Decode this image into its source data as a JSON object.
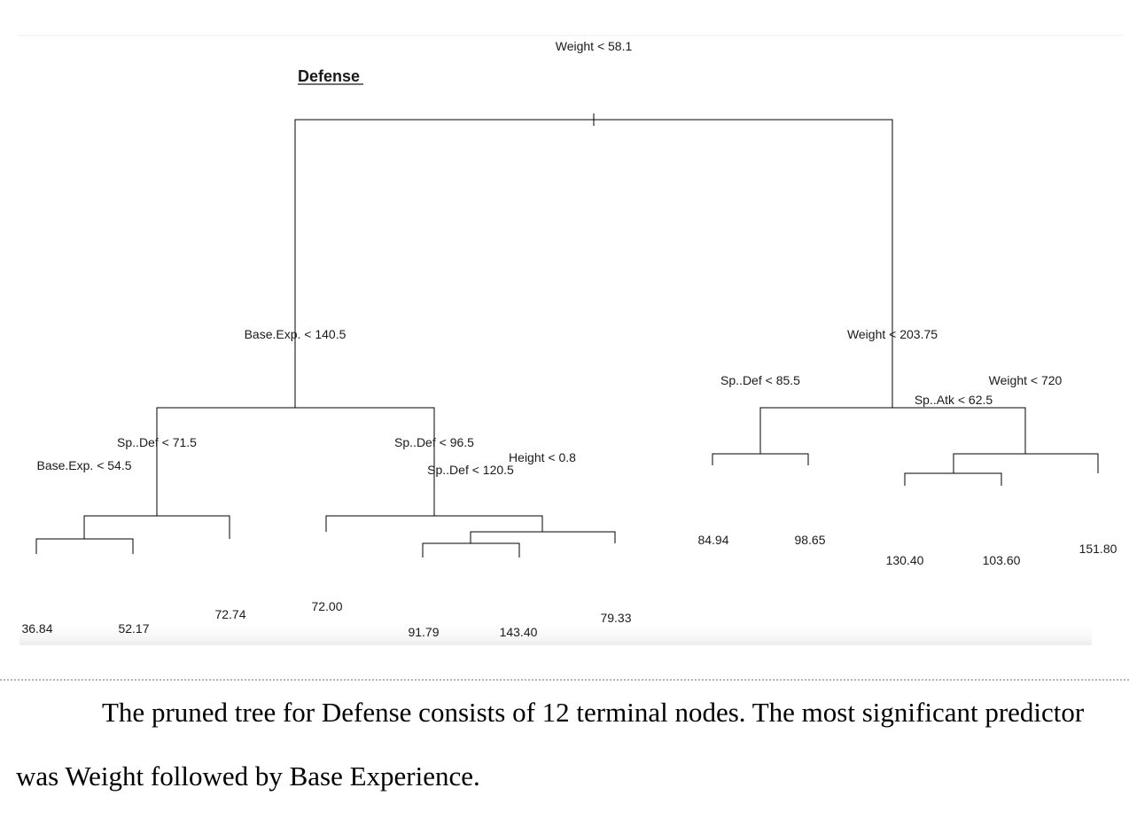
{
  "figure": {
    "title": "Defense",
    "splits": {
      "root": "Weight < 58.1",
      "left": "Base.Exp. < 140.5",
      "right": "Weight < 203.75",
      "ll": "Sp..Def < 71.5",
      "lll": "Base.Exp. < 54.5",
      "lr": "Sp..Def < 96.5",
      "lrr": "Height < 0.8",
      "lrrl": "Sp..Def < 120.5",
      "rl": "Sp..Def < 85.5",
      "rr": "Weight < 720",
      "rrl": "Sp..Atk < 62.5"
    },
    "leaves": [
      {
        "id": "l1",
        "value": "36.84"
      },
      {
        "id": "l2",
        "value": "52.17"
      },
      {
        "id": "l3",
        "value": "72.74"
      },
      {
        "id": "l4",
        "value": "72.00"
      },
      {
        "id": "l5",
        "value": "91.79"
      },
      {
        "id": "l6",
        "value": "143.40"
      },
      {
        "id": "l7",
        "value": "79.33"
      },
      {
        "id": "l8",
        "value": "84.94"
      },
      {
        "id": "l9",
        "value": "98.65"
      },
      {
        "id": "l10",
        "value": "130.40"
      },
      {
        "id": "l11",
        "value": "103.60"
      },
      {
        "id": "l12",
        "value": "151.80"
      }
    ]
  },
  "caption": {
    "text": "The pruned tree for Defense consists of 12 terminal nodes. The most significant predictor was Weight followed by Base Experience."
  }
}
